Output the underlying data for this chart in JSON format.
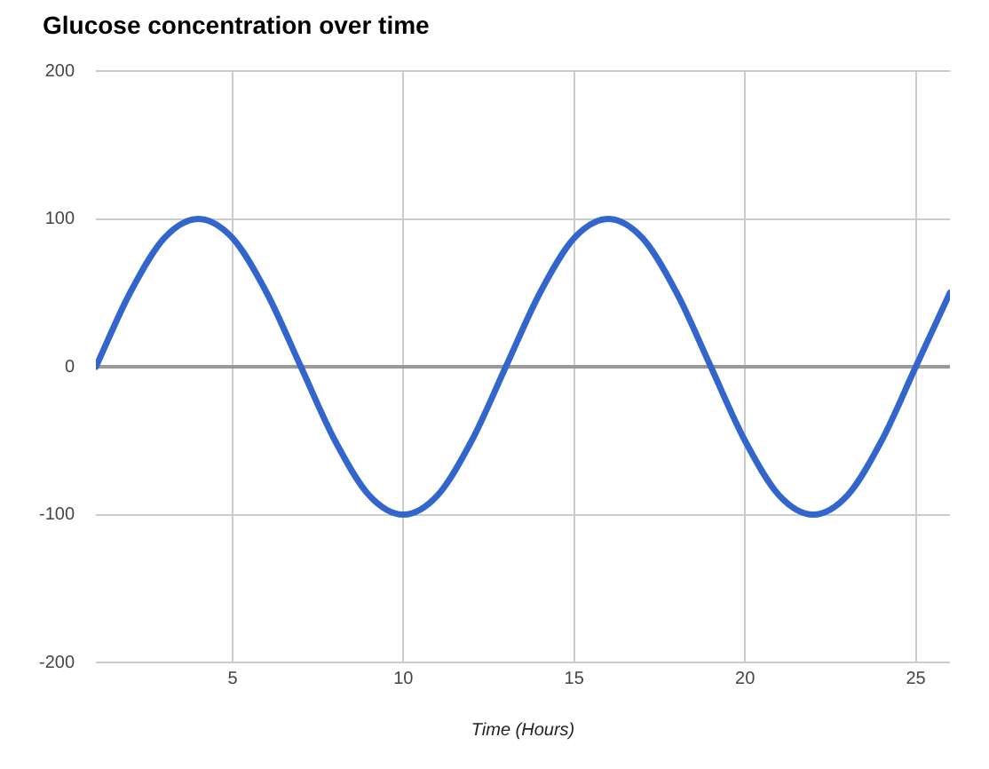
{
  "chart_data": {
    "type": "line",
    "title": "Glucose concentration over time",
    "xlabel": "Time (Hours)",
    "x": [
      1,
      2,
      3,
      4,
      5,
      6,
      7,
      8,
      9,
      10,
      11,
      12,
      13,
      14,
      15,
      16,
      17,
      18,
      19,
      20,
      21,
      22,
      23,
      24,
      25,
      26
    ],
    "series": [
      {
        "color": "#3366cc",
        "values": [
          0,
          50,
          87,
          100,
          87,
          50,
          0,
          -50,
          -87,
          -100,
          -87,
          -50,
          0,
          50,
          87,
          100,
          87,
          50,
          0,
          -50,
          -87,
          -100,
          -87,
          -50,
          0,
          50
        ]
      }
    ],
    "xlim": [
      1,
      26
    ],
    "xticks": [
      5,
      10,
      15,
      20,
      25
    ],
    "ylim": [
      -200,
      200
    ],
    "yticks": [
      -200,
      -100,
      0,
      100,
      200
    ],
    "grid": true,
    "legend": false,
    "marker": "none",
    "line_style": "solid"
  }
}
